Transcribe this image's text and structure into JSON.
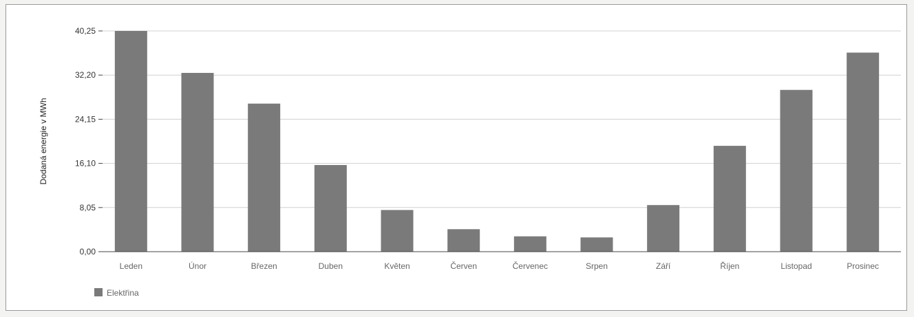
{
  "chart_data": {
    "type": "bar",
    "title": "",
    "xlabel": "",
    "ylabel": "Dodaná energie v MWh",
    "ylim": [
      0,
      40.25
    ],
    "yticks": [
      "0,00",
      "8,05",
      "16,10",
      "24,15",
      "32,20",
      "40,25"
    ],
    "categories": [
      "Leden",
      "Únor",
      "Březen",
      "Duben",
      "Květen",
      "Červen",
      "Červenec",
      "Srpen",
      "Září",
      "Říjen",
      "Listopad",
      "Prosinec"
    ],
    "series": [
      {
        "name": "Elektřina",
        "values": [
          40.25,
          32.6,
          27.0,
          15.8,
          7.6,
          4.1,
          2.8,
          2.6,
          8.5,
          19.3,
          29.5,
          36.3
        ]
      }
    ],
    "grid": true,
    "legend": "bottom-left",
    "colors": {
      "bar": "#7a7a7a",
      "grid": "#d0d0d0",
      "axis": "#444444"
    }
  }
}
